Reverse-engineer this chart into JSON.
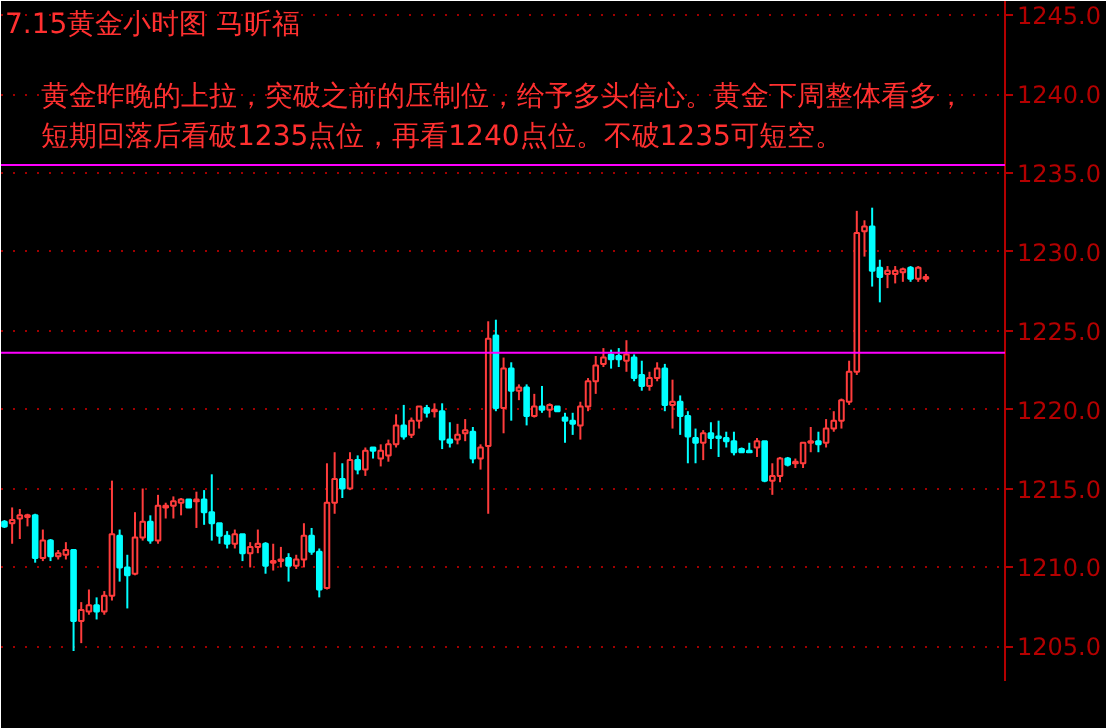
{
  "chart_data": {
    "type": "candlestick",
    "title": "7.15黄金小时图  马昕福",
    "annotations": [
      "黄金昨晚的上拉，突破之前的压制位，给予多头信心。黄金下周整体看多，",
      "短期回落后看破1235点位，再看1240点位。不破1235可短空。"
    ],
    "categories": [
      null,
      null,
      null,
      null,
      null,
      null,
      null,
      null,
      null,
      null,
      null,
      null,
      null,
      null,
      null,
      null,
      null,
      null,
      null,
      null,
      null,
      null,
      null,
      null,
      null,
      null,
      null,
      null,
      null,
      null,
      null,
      null,
      null,
      null,
      null,
      null,
      null,
      null,
      null,
      null,
      null,
      null,
      null,
      null,
      null,
      null,
      null,
      null,
      null,
      null,
      null,
      null,
      null,
      null,
      null,
      null,
      null,
      null,
      null,
      null,
      null,
      null,
      null,
      null,
      null,
      null,
      null,
      null,
      null,
      null,
      null,
      null,
      null,
      null,
      null,
      null,
      null,
      null,
      null,
      null,
      null,
      null,
      null,
      null,
      null,
      null,
      null,
      null,
      null,
      null,
      null,
      null,
      null,
      null,
      null,
      null,
      null,
      null,
      null,
      null,
      null,
      null,
      null,
      null,
      null,
      null,
      null,
      null,
      null,
      null,
      null,
      null,
      null,
      null,
      null,
      null,
      null,
      null,
      null,
      null,
      null
    ],
    "ohlc": [
      [
        1212.9,
        1213.0,
        1212.5,
        1212.6
      ],
      [
        1212.8,
        1213.8,
        1211.5,
        1213.0
      ],
      [
        1213.1,
        1213.7,
        1211.8,
        1213.3
      ],
      [
        1213.2,
        1213.4,
        1212.6,
        1213.3
      ],
      [
        1213.3,
        1213.4,
        1210.3,
        1210.6
      ],
      [
        1210.6,
        1212.4,
        1210.4,
        1211.7
      ],
      [
        1211.7,
        1211.8,
        1210.4,
        1210.7
      ],
      [
        1210.7,
        1211.1,
        1210.5,
        1210.9
      ],
      [
        1210.8,
        1211.6,
        1210.5,
        1211.1
      ],
      [
        1211.1,
        1211.1,
        1204.7,
        1206.6
      ],
      [
        1206.6,
        1207.8,
        1205.2,
        1207.3
      ],
      [
        1207.2,
        1208.6,
        1207.0,
        1207.6
      ],
      [
        1207.6,
        1208.1,
        1206.7,
        1207.2
      ],
      [
        1207.2,
        1208.5,
        1207.0,
        1208.2
      ],
      [
        1208.2,
        1215.5,
        1207.9,
        1212.1
      ],
      [
        1212.0,
        1212.4,
        1209.1,
        1210.0
      ],
      [
        1210.0,
        1210.8,
        1207.4,
        1209.5
      ],
      [
        1209.6,
        1213.5,
        1209.5,
        1211.9
      ],
      [
        1211.9,
        1215.0,
        1211.7,
        1212.9
      ],
      [
        1212.9,
        1213.3,
        1211.5,
        1211.7
      ],
      [
        1211.7,
        1214.6,
        1211.5,
        1213.9
      ],
      [
        1213.8,
        1214.1,
        1213.1,
        1213.9
      ],
      [
        1213.9,
        1214.5,
        1213.1,
        1214.2
      ],
      [
        1214.1,
        1214.4,
        1213.3,
        1214.3
      ],
      [
        1214.3,
        1214.3,
        1213.8,
        1213.8
      ],
      [
        1214.2,
        1214.8,
        1212.5,
        1214.3
      ],
      [
        1214.3,
        1214.9,
        1212.7,
        1213.5
      ],
      [
        1213.5,
        1215.9,
        1211.7,
        1212.8
      ],
      [
        1212.8,
        1212.8,
        1211.5,
        1212.0
      ],
      [
        1212.0,
        1212.3,
        1211.2,
        1211.5
      ],
      [
        1211.5,
        1212.4,
        1211.2,
        1212.1
      ],
      [
        1212.1,
        1212.1,
        1210.4,
        1210.9
      ],
      [
        1210.9,
        1211.6,
        1210.0,
        1211.3
      ],
      [
        1211.3,
        1212.4,
        1210.9,
        1211.5
      ],
      [
        1211.5,
        1211.6,
        1209.6,
        1210.1
      ],
      [
        1210.3,
        1211.5,
        1209.8,
        1210.4
      ],
      [
        1210.4,
        1211.3,
        1210.0,
        1210.5
      ],
      [
        1210.6,
        1210.9,
        1209.1,
        1210.1
      ],
      [
        1210.1,
        1210.8,
        1209.9,
        1210.5
      ],
      [
        1210.5,
        1212.8,
        1210.0,
        1212.0
      ],
      [
        1212.0,
        1212.5,
        1210.8,
        1211.0
      ],
      [
        1211.0,
        1211.2,
        1208.1,
        1208.6
      ],
      [
        1208.7,
        1216.6,
        1208.6,
        1214.1
      ],
      [
        1214.1,
        1217.3,
        1213.4,
        1215.6
      ],
      [
        1215.6,
        1216.6,
        1214.4,
        1215.0
      ],
      [
        1215.0,
        1217.3,
        1214.9,
        1216.8
      ],
      [
        1216.8,
        1217.1,
        1215.9,
        1216.2
      ],
      [
        1216.2,
        1217.6,
        1215.8,
        1217.4
      ],
      [
        1217.6,
        1217.6,
        1216.9,
        1217.4
      ],
      [
        1216.9,
        1217.8,
        1216.4,
        1217.4
      ],
      [
        1217.1,
        1218.1,
        1216.7,
        1217.8
      ],
      [
        1217.8,
        1219.7,
        1217.6,
        1219.0
      ],
      [
        1219.0,
        1220.3,
        1218.1,
        1218.3
      ],
      [
        1218.4,
        1219.5,
        1218.2,
        1219.3
      ],
      [
        1219.3,
        1220.2,
        1218.8,
        1220.2
      ],
      [
        1220.1,
        1220.3,
        1219.5,
        1219.8
      ],
      [
        1219.9,
        1220.4,
        1219.5,
        1220.0
      ],
      [
        1219.9,
        1220.4,
        1217.5,
        1218.1
      ],
      [
        1218.1,
        1219.2,
        1217.6,
        1217.9
      ],
      [
        1218.1,
        1219.1,
        1217.8,
        1218.4
      ],
      [
        1218.5,
        1219.4,
        1218.0,
        1218.7
      ],
      [
        1218.6,
        1218.9,
        1216.6,
        1216.9
      ],
      [
        1216.9,
        1217.8,
        1216.2,
        1217.6
      ],
      [
        1217.7,
        1225.6,
        1213.4,
        1224.5
      ],
      [
        1224.7,
        1225.7,
        1219.9,
        1220.1
      ],
      [
        1220.1,
        1223.3,
        1218.5,
        1222.6
      ],
      [
        1222.6,
        1223.0,
        1219.3,
        1221.2
      ],
      [
        1221.2,
        1221.6,
        1220.6,
        1221.4
      ],
      [
        1221.4,
        1221.6,
        1219.0,
        1219.6
      ],
      [
        1219.6,
        1221.0,
        1219.5,
        1220.2
      ],
      [
        1220.2,
        1221.5,
        1219.8,
        1220.0
      ],
      [
        1220.0,
        1220.4,
        1219.5,
        1220.3
      ],
      [
        1220.2,
        1220.2,
        1219.9,
        1219.9
      ],
      [
        1219.5,
        1219.8,
        1217.9,
        1219.3
      ],
      [
        1219.3,
        1219.8,
        1218.4,
        1219.1
      ],
      [
        1219.0,
        1220.5,
        1218.1,
        1220.2
      ],
      [
        1220.2,
        1222.0,
        1219.9,
        1221.8
      ],
      [
        1221.8,
        1223.4,
        1221.0,
        1222.8
      ],
      [
        1222.9,
        1223.9,
        1222.7,
        1223.3
      ],
      [
        1223.5,
        1223.8,
        1222.6,
        1223.2
      ],
      [
        1223.4,
        1223.9,
        1222.7,
        1223.2
      ],
      [
        1223.1,
        1224.4,
        1222.4,
        1223.5
      ],
      [
        1223.3,
        1223.5,
        1221.8,
        1222.0
      ],
      [
        1222.2,
        1223.1,
        1221.2,
        1221.5
      ],
      [
        1221.5,
        1222.4,
        1221.2,
        1222.0
      ],
      [
        1222.0,
        1223.0,
        1221.8,
        1222.6
      ],
      [
        1222.6,
        1222.9,
        1219.9,
        1220.3
      ],
      [
        1220.3,
        1221.9,
        1218.8,
        1220.5
      ],
      [
        1220.5,
        1220.9,
        1218.4,
        1219.6
      ],
      [
        1219.6,
        1219.9,
        1216.6,
        1218.3
      ],
      [
        1218.2,
        1218.8,
        1216.6,
        1217.9
      ],
      [
        1217.9,
        1218.7,
        1216.8,
        1218.5
      ],
      [
        1218.5,
        1219.2,
        1217.5,
        1218.2
      ],
      [
        1218.3,
        1219.3,
        1217.0,
        1218.2
      ],
      [
        1218.2,
        1218.6,
        1217.6,
        1218.0
      ],
      [
        1218.0,
        1218.6,
        1217.1,
        1217.3
      ],
      [
        1217.5,
        1217.6,
        1217.3,
        1217.3
      ],
      [
        1217.4,
        1217.9,
        1217.3,
        1217.3
      ],
      [
        1217.6,
        1218.2,
        1217.0,
        1218.0
      ],
      [
        1218.0,
        1218.0,
        1215.4,
        1215.5
      ],
      [
        1215.5,
        1216.6,
        1214.6,
        1215.8
      ],
      [
        1215.8,
        1217.0,
        1215.4,
        1216.9
      ],
      [
        1216.9,
        1217.0,
        1216.4,
        1216.5
      ],
      [
        1216.6,
        1216.9,
        1216.3,
        1216.7
      ],
      [
        1216.6,
        1217.9,
        1216.3,
        1217.9
      ],
      [
        1217.9,
        1218.9,
        1217.3,
        1218.0
      ],
      [
        1218.0,
        1218.6,
        1217.3,
        1217.8
      ],
      [
        1217.9,
        1219.4,
        1217.6,
        1218.8
      ],
      [
        1218.8,
        1219.9,
        1218.6,
        1219.3
      ],
      [
        1219.3,
        1220.7,
        1218.8,
        1220.6
      ],
      [
        1220.5,
        1223.1,
        1220.3,
        1222.4
      ],
      [
        1222.4,
        1232.6,
        1222.2,
        1231.2
      ],
      [
        1231.3,
        1232.0,
        1229.7,
        1231.6
      ],
      [
        1231.6,
        1232.8,
        1227.8,
        1228.8
      ],
      [
        1229.0,
        1229.5,
        1226.8,
        1228.4
      ],
      [
        1228.6,
        1229.1,
        1227.7,
        1228.8
      ],
      [
        1228.6,
        1229.1,
        1228.0,
        1228.8
      ],
      [
        1228.7,
        1229.0,
        1228.1,
        1228.9
      ],
      [
        1229.0,
        1229.1,
        1228.1,
        1228.3
      ],
      [
        1228.3,
        1229.1,
        1228.1,
        1229.0
      ],
      [
        1228.3,
        1228.6,
        1228.1,
        1228.4
      ]
    ],
    "colors": [
      "#00ffff",
      "#ff3c3c",
      "#ff3c3c",
      "#ff3c3c",
      "#00ffff",
      "#ff3c3c",
      "#00ffff",
      "#ff3c3c",
      "#ff3c3c",
      "#00ffff",
      "#ff3c3c",
      "#ff3c3c",
      "#00ffff",
      "#ff3c3c",
      "#ff3c3c",
      "#00ffff",
      "#00ffff",
      "#ff3c3c",
      "#ff3c3c",
      "#00ffff",
      "#ff3c3c",
      "#ff3c3c",
      "#ff3c3c",
      "#ff3c3c",
      "#00ffff",
      "#ff3c3c",
      "#00ffff",
      "#00ffff",
      "#00ffff",
      "#00ffff",
      "#ff3c3c",
      "#00ffff",
      "#ff3c3c",
      "#ff3c3c",
      "#00ffff",
      "#ff3c3c",
      "#ff3c3c",
      "#00ffff",
      "#ff3c3c",
      "#ff3c3c",
      "#00ffff",
      "#00ffff",
      "#ff3c3c",
      "#ff3c3c",
      "#00ffff",
      "#ff3c3c",
      "#00ffff",
      "#ff3c3c",
      "#00ffff",
      "#ff3c3c",
      "#ff3c3c",
      "#ff3c3c",
      "#00ffff",
      "#ff3c3c",
      "#ff3c3c",
      "#00ffff",
      "#ff3c3c",
      "#00ffff",
      "#00ffff",
      "#ff3c3c",
      "#ff3c3c",
      "#00ffff",
      "#ff3c3c",
      "#ff3c3c",
      "#00ffff",
      "#ff3c3c",
      "#00ffff",
      "#ff3c3c",
      "#00ffff",
      "#ff3c3c",
      "#00ffff",
      "#ff3c3c",
      "#00ffff",
      "#00ffff",
      "#00ffff",
      "#ff3c3c",
      "#ff3c3c",
      "#ff3c3c",
      "#ff3c3c",
      "#00ffff",
      "#00ffff",
      "#ff3c3c",
      "#00ffff",
      "#00ffff",
      "#ff3c3c",
      "#ff3c3c",
      "#00ffff",
      "#ff3c3c",
      "#00ffff",
      "#00ffff",
      "#00ffff",
      "#ff3c3c",
      "#00ffff",
      "#00ffff",
      "#00ffff",
      "#00ffff",
      "#00ffff",
      "#00ffff",
      "#ff3c3c",
      "#00ffff",
      "#ff3c3c",
      "#ff3c3c",
      "#00ffff",
      "#ff3c3c",
      "#ff3c3c",
      "#ff3c3c",
      "#00ffff",
      "#ff3c3c",
      "#ff3c3c",
      "#ff3c3c",
      "#ff3c3c",
      "#ff3c3c",
      "#ff3c3c",
      "#00ffff",
      "#00ffff",
      "#ff3c3c",
      "#ff3c3c",
      "#ff3c3c",
      "#00ffff",
      "#ff3c3c",
      "#ff3c3c"
    ],
    "ylim": [
      1202.8,
      1245.9
    ],
    "yticks": [
      {
        "value": 1205,
        "label": "1205.0"
      },
      {
        "value": 1210,
        "label": "1210.0"
      },
      {
        "value": 1215,
        "label": "1215.0"
      },
      {
        "value": 1220,
        "label": "1220.0"
      },
      {
        "value": 1225,
        "label": "1225.0"
      },
      {
        "value": 1230,
        "label": "1230.0"
      },
      {
        "value": 1235,
        "label": "1235.0"
      },
      {
        "value": 1240,
        "label": "1240.0"
      },
      {
        "value": 1245,
        "label": "1245.0"
      }
    ],
    "grid": "y",
    "tick_labels": "y",
    "ref_lines": [
      {
        "axis": "y",
        "value": 1235.5,
        "label": null,
        "color": "#ff00ff"
      },
      {
        "axis": "y",
        "value": 1223.6,
        "label": null,
        "color": "#ff00ff"
      }
    ]
  }
}
